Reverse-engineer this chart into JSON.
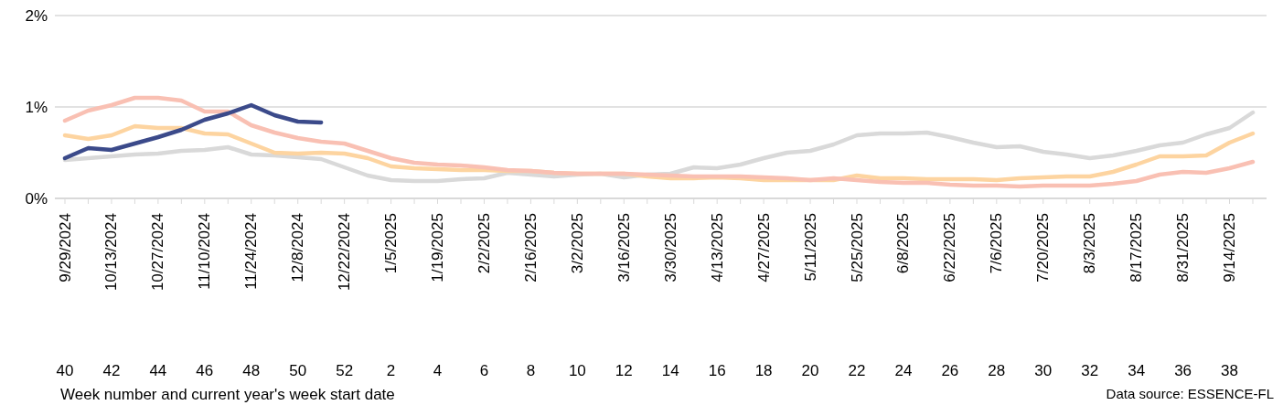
{
  "chart_data": {
    "type": "line",
    "annotations": [
      "Week number and current year's week start date",
      "Data source: ESSENCE-FL"
    ],
    "categories": [
      "9/29/2024\n40",
      null,
      "10/13/2024\n42",
      null,
      "10/27/2024\n44",
      null,
      "11/10/2024\n46",
      null,
      "11/24/2024\n48",
      null,
      "12/8/2024\n50",
      null,
      "12/22/2024\n52",
      null,
      "1/5/2025\n2",
      null,
      "1/19/2025\n4",
      null,
      "2/2/2025\n6",
      null,
      "2/16/2025\n8",
      null,
      "3/2/2025\n10",
      null,
      "3/16/2025\n12",
      null,
      "3/30/2025\n14",
      null,
      "4/13/2025\n16",
      null,
      "4/27/2025\n18",
      null,
      "5/11/2025\n20",
      null,
      "5/25/2025\n22",
      null,
      "6/8/2025\n24",
      null,
      "6/22/2025\n26",
      null,
      "7/6/2025\n28",
      null,
      "7/20/2025\n30",
      null,
      "8/3/2025\n32",
      null,
      "8/17/2025\n34",
      null,
      "8/31/2025\n36",
      null,
      "9/14/2025\n38",
      null
    ],
    "series": [
      {
        "color": "#d9d9d9",
        "values": [
          0.42,
          0.44,
          0.46,
          0.48,
          0.49,
          0.52,
          0.53,
          0.56,
          0.48,
          0.47,
          0.45,
          0.43,
          0.34,
          0.25,
          0.2,
          0.19,
          0.19,
          0.21,
          0.22,
          0.28,
          0.26,
          0.24,
          0.26,
          0.27,
          0.23,
          0.26,
          0.27,
          0.34,
          0.33,
          0.37,
          0.44,
          0.5,
          0.52,
          0.59,
          0.69,
          0.71,
          0.71,
          0.72,
          0.67,
          0.61,
          0.56,
          0.57,
          0.51,
          0.48,
          0.44,
          0.47,
          0.52,
          0.58,
          0.61,
          0.7,
          0.77,
          0.94
        ]
      },
      {
        "color": "#fdd4a0",
        "values": [
          0.69,
          0.65,
          0.69,
          0.79,
          0.77,
          0.77,
          0.71,
          0.7,
          0.6,
          0.5,
          0.49,
          0.5,
          0.49,
          0.44,
          0.35,
          0.33,
          0.32,
          0.31,
          0.31,
          0.3,
          0.3,
          0.28,
          0.27,
          0.27,
          0.27,
          0.24,
          0.22,
          0.22,
          0.23,
          0.22,
          0.2,
          0.2,
          0.2,
          0.2,
          0.25,
          0.22,
          0.22,
          0.21,
          0.21,
          0.21,
          0.2,
          0.22,
          0.23,
          0.24,
          0.24,
          0.29,
          0.37,
          0.46,
          0.46,
          0.47,
          0.61,
          0.71
        ]
      },
      {
        "color": "#f9c0b3",
        "values": [
          0.85,
          0.96,
          1.02,
          1.1,
          1.1,
          1.07,
          0.95,
          0.95,
          0.8,
          0.72,
          0.66,
          0.62,
          0.6,
          0.52,
          0.44,
          0.39,
          0.37,
          0.36,
          0.34,
          0.31,
          0.3,
          0.28,
          0.27,
          0.27,
          0.27,
          0.26,
          0.25,
          0.24,
          0.24,
          0.24,
          0.23,
          0.22,
          0.2,
          0.22,
          0.2,
          0.18,
          0.17,
          0.17,
          0.15,
          0.14,
          0.14,
          0.13,
          0.14,
          0.14,
          0.14,
          0.16,
          0.19,
          0.26,
          0.29,
          0.28,
          0.33,
          0.4
        ]
      },
      {
        "color": "#3b4a8a",
        "values": [
          0.44,
          0.55,
          0.53,
          0.6,
          0.67,
          0.75,
          0.86,
          0.93,
          1.02,
          0.91,
          0.84,
          0.83,
          null,
          null,
          null,
          null,
          null,
          null,
          null,
          null,
          null,
          null,
          null,
          null,
          null,
          null,
          null,
          null,
          null,
          null,
          null,
          null,
          null,
          null,
          null,
          null,
          null,
          null,
          null,
          null,
          null,
          null,
          null,
          null,
          null,
          null,
          null,
          null,
          null,
          null,
          null,
          null
        ]
      }
    ],
    "ylim": [
      0,
      2
    ],
    "yticks": [
      {
        "value": 0,
        "label": "0%"
      },
      {
        "value": 1,
        "label": "1%"
      },
      {
        "value": 2,
        "label": "2%"
      }
    ],
    "grid": "y",
    "legend": false,
    "marker": "none",
    "line_style": "solid"
  }
}
